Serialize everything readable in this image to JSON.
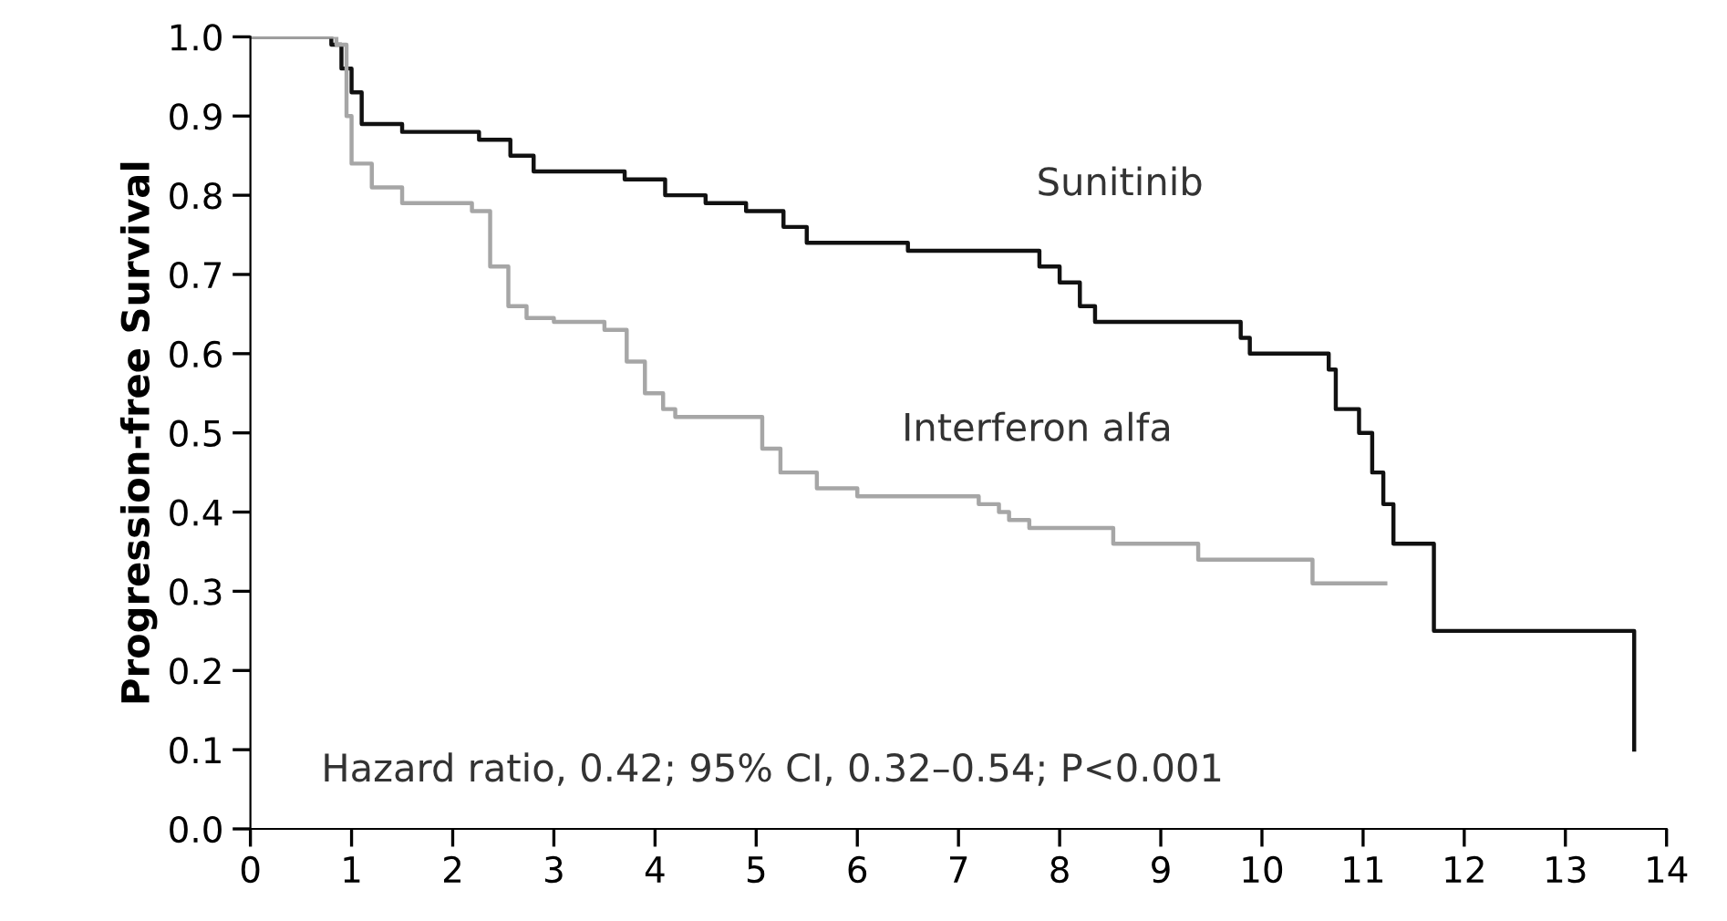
{
  "chart_data": {
    "type": "step",
    "ylabel": "Progression-free Survival",
    "xlim": [
      0,
      14
    ],
    "xticks": [
      0,
      1,
      2,
      3,
      4,
      5,
      6,
      7,
      8,
      9,
      10,
      11,
      12,
      13,
      14
    ],
    "ylim": [
      0,
      1.0
    ],
    "yticks": [
      {
        "value": 0,
        "label": "0.0"
      },
      0.1,
      0.2,
      0.3,
      0.4,
      0.5,
      0.6,
      0.7,
      0.8,
      0.9,
      {
        "value": 1,
        "label": "1.0"
      }
    ],
    "grid": false,
    "legend": false,
    "annotations": [
      "Hazard ratio, 0.42; 95% CI, 0.32–0.54; P<0.001"
    ],
    "series": [
      {
        "name": "Sunitinib",
        "color": "#111111",
        "x": [
          0,
          0.8,
          0.9,
          1.0,
          1.1,
          1.5,
          2.26,
          2.57,
          2.8,
          3.7,
          4.1,
          4.5,
          4.9,
          5.27,
          5.5,
          6.5,
          7.8,
          8.0,
          8.2,
          8.35,
          9.79,
          9.88,
          10.66,
          10.73,
          10.96,
          11.09,
          11.2,
          11.3,
          11.7,
          13.68,
          13.68
        ],
        "values": [
          1.0,
          0.99,
          0.96,
          0.93,
          0.89,
          0.88,
          0.87,
          0.85,
          0.83,
          0.82,
          0.8,
          0.79,
          0.78,
          0.76,
          0.74,
          0.73,
          0.71,
          0.69,
          0.66,
          0.64,
          0.62,
          0.6,
          0.58,
          0.53,
          0.5,
          0.45,
          0.41,
          0.36,
          0.25,
          0.25,
          0.1
        ]
      },
      {
        "name": "Interferon alfa",
        "color": "#a6a6a6",
        "x": [
          0,
          0.85,
          0.95,
          1.0,
          1.2,
          1.5,
          2.19,
          2.37,
          2.55,
          2.73,
          3.0,
          3.5,
          3.72,
          3.9,
          4.08,
          4.2,
          4.94,
          5.06,
          5.24,
          5.6,
          6.0,
          7.2,
          7.4,
          7.5,
          7.7,
          7.9,
          8.53,
          9.37,
          10.5,
          11.22
        ],
        "values": [
          1.0,
          0.99,
          0.9,
          0.84,
          0.81,
          0.79,
          0.78,
          0.71,
          0.66,
          0.645,
          0.64,
          0.63,
          0.59,
          0.55,
          0.53,
          0.52,
          0.52,
          0.48,
          0.45,
          0.43,
          0.42,
          0.41,
          0.4,
          0.39,
          0.38,
          0.38,
          0.36,
          0.34,
          0.31,
          0.31
        ]
      }
    ]
  }
}
